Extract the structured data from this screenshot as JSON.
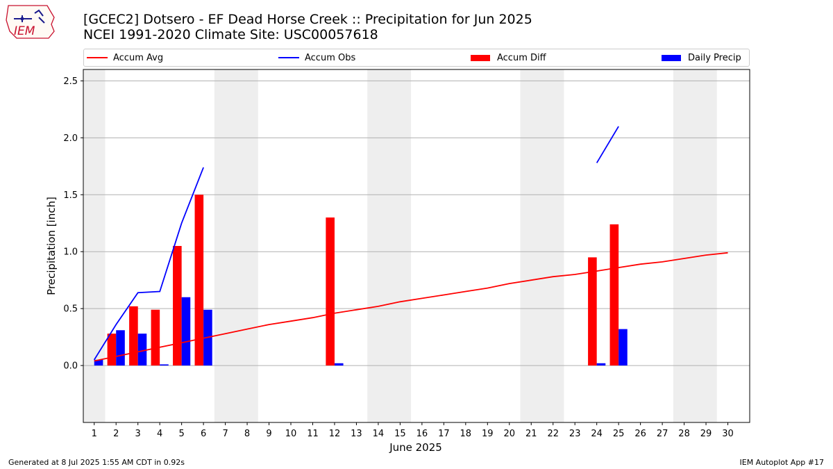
{
  "header": {
    "title_line1": "[GCEC2] Dotsero - EF Dead Horse Creek :: Precipitation for Jun 2025",
    "title_line2": "NCEI 1991-2020 Climate Site: USC00057618",
    "logo_text": "IEM"
  },
  "legend": {
    "items": [
      {
        "label": "Accum Avg",
        "color": "#ff0000",
        "kind": "line"
      },
      {
        "label": "Accum Obs",
        "color": "#0000ff",
        "kind": "line"
      },
      {
        "label": "Accum Diff",
        "color": "#ff0000",
        "kind": "bar"
      },
      {
        "label": "Daily Precip",
        "color": "#0000ff",
        "kind": "bar"
      }
    ]
  },
  "footer": {
    "left": "Generated at 8 Jul 2025 1:55 AM CDT in 0.92s",
    "right": "IEM Autoplot App #17"
  },
  "chart_data": {
    "type": "bar",
    "xlabel": "June 2025",
    "ylabel": "Precipitation [inch]",
    "ylim": [
      -0.5,
      2.6
    ],
    "xlim": [
      0.5,
      31
    ],
    "yticks": [
      0.0,
      0.5,
      1.0,
      1.5,
      2.0,
      2.5
    ],
    "ytick_labels": [
      "0.0",
      "0.5",
      "1.0",
      "1.5",
      "2.0",
      "2.5"
    ],
    "x": [
      1,
      2,
      3,
      4,
      5,
      6,
      7,
      8,
      9,
      10,
      11,
      12,
      13,
      14,
      15,
      16,
      17,
      18,
      19,
      20,
      21,
      22,
      23,
      24,
      25,
      26,
      27,
      28,
      29,
      30
    ],
    "grid": "horizontal",
    "weekend_shading": [
      [
        0.5,
        1.5
      ],
      [
        6.5,
        8.5
      ],
      [
        13.5,
        15.5
      ],
      [
        20.5,
        22.5
      ],
      [
        27.5,
        29.5
      ]
    ],
    "series": [
      {
        "name": "Accum Avg",
        "kind": "line",
        "color": "#ff0000",
        "x": [
          1,
          2,
          3,
          4,
          5,
          6,
          7,
          8,
          9,
          10,
          11,
          12,
          13,
          14,
          15,
          16,
          17,
          18,
          19,
          20,
          21,
          22,
          23,
          24,
          25,
          26,
          27,
          28,
          29,
          30
        ],
        "values": [
          0.04,
          0.08,
          0.12,
          0.16,
          0.2,
          0.24,
          0.28,
          0.32,
          0.36,
          0.39,
          0.42,
          0.46,
          0.49,
          0.52,
          0.56,
          0.59,
          0.62,
          0.65,
          0.68,
          0.72,
          0.75,
          0.78,
          0.8,
          0.83,
          0.86,
          0.89,
          0.91,
          0.94,
          0.97,
          0.99
        ]
      },
      {
        "name": "Accum Obs",
        "kind": "line",
        "color": "#0000ff",
        "segments": [
          {
            "x": [
              1,
              2,
              3,
              4,
              5,
              6
            ],
            "values": [
              0.05,
              0.36,
              0.64,
              0.65,
              1.25,
              1.74
            ]
          },
          {
            "x": [
              24,
              25
            ],
            "values": [
              1.78,
              2.1
            ]
          }
        ]
      },
      {
        "name": "Accum Diff",
        "kind": "bar",
        "color": "#ff0000",
        "offset": -0.2,
        "x": [
          2,
          3,
          4,
          5,
          6,
          12,
          24,
          25
        ],
        "values": [
          0.28,
          0.52,
          0.49,
          1.05,
          1.5,
          1.3,
          0.95,
          1.24
        ]
      },
      {
        "name": "Daily Precip",
        "kind": "bar",
        "color": "#0000ff",
        "offset": 0.2,
        "x": [
          1,
          2,
          3,
          4,
          5,
          6,
          12,
          24,
          25
        ],
        "values": [
          0.05,
          0.31,
          0.28,
          0.01,
          0.6,
          0.49,
          0.02,
          0.02,
          0.32
        ]
      }
    ]
  }
}
